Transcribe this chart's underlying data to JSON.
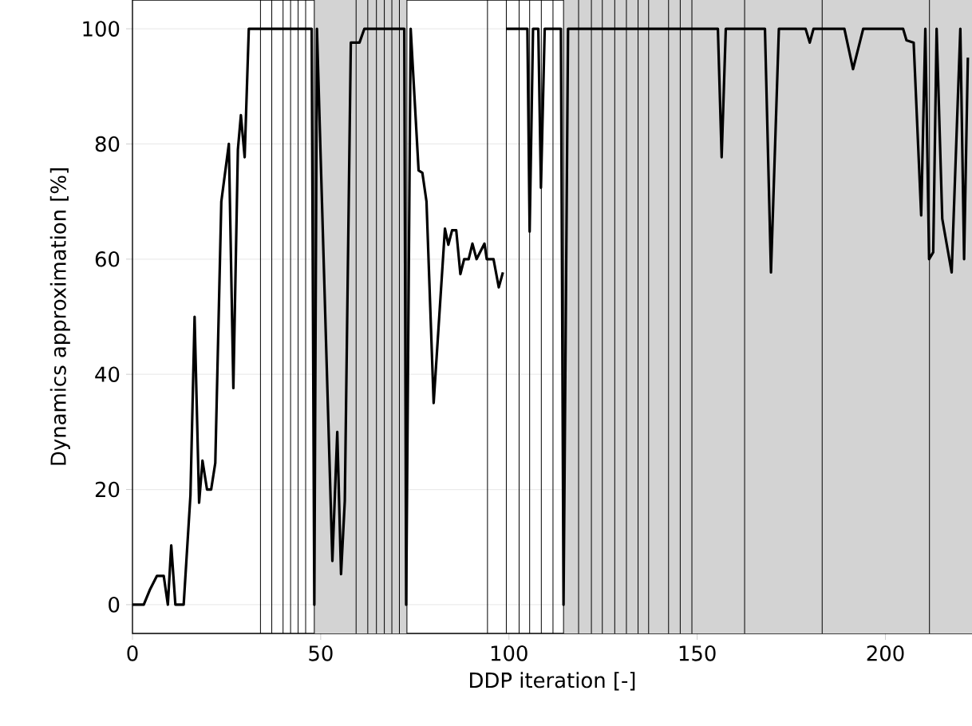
{
  "chart_data": {
    "type": "line",
    "xlabel": "DDP iteration [-]",
    "ylabel": "Dynamics approximation [%]",
    "xlim": [
      0,
      223
    ],
    "ylim": [
      -5,
      105
    ],
    "xticks": [
      0,
      50,
      100,
      150,
      200
    ],
    "yticks": [
      0,
      20,
      40,
      60,
      80,
      100
    ],
    "grid": "y",
    "line_style": "solid",
    "series": [
      {
        "color": "#000000",
        "x": [
          0,
          3,
          4.7,
          6.5,
          8.3,
          9.4,
          10.3,
          11.4,
          13.6,
          15.4,
          16.5,
          17.7,
          18.6,
          19.8,
          20.9,
          22,
          23.6,
          25.6,
          26.8,
          28,
          28.8,
          29.8,
          30.9,
          47.6,
          48.3,
          49,
          53.1,
          54.4,
          55.4,
          56.4,
          58,
          60.3,
          61.6,
          72.2,
          72.7,
          73.9,
          76,
          77,
          78.1,
          80,
          83,
          83.9,
          84.9,
          86,
          87.1,
          88.1,
          89.3,
          90.3,
          91.4,
          93.5,
          94.1,
          95.9,
          97.3,
          98.4,
          98.8,
          99.2,
          104.9,
          105.5,
          106.4,
          107.8,
          108.5,
          109.5,
          113.8,
          114.5,
          115.7,
          155.5,
          156.5,
          157.6,
          168,
          169.6,
          171.7,
          178.8,
          179.9,
          180.9,
          189.1,
          191.4,
          194.1,
          204.7,
          205.6,
          207.5,
          209.5,
          210.6,
          211.6,
          212.7,
          213.6,
          215.1,
          217.6,
          219.9,
          220.9,
          221.9
        ],
        "values": [
          0,
          0,
          2.7,
          5,
          5,
          0,
          10.3,
          0,
          0,
          19,
          50,
          17.7,
          25,
          20,
          20,
          24.6,
          70,
          80,
          37.6,
          79,
          85,
          77.7,
          100,
          100,
          0,
          100,
          7.6,
          30,
          5.3,
          18,
          97.6,
          97.6,
          100,
          100,
          0,
          100,
          75.4,
          75,
          70,
          35,
          65.3,
          62.5,
          65,
          65,
          57.4,
          60,
          60,
          62.7,
          60,
          62.7,
          60,
          60,
          55.1,
          57.7,
          null,
          100,
          100,
          64.8,
          100,
          100,
          72.4,
          100,
          100,
          0,
          100,
          100,
          77.7,
          100,
          100,
          57.7,
          100,
          100,
          97.6,
          100,
          100,
          93,
          100,
          100,
          98,
          97.6,
          67.6,
          100,
          60,
          61.2,
          100,
          67,
          57.7,
          100,
          60,
          95
        ]
      }
    ],
    "bands": [
      {
        "axis": "x",
        "from": 48.3,
        "to": 72.9,
        "color": "#d3d3d3"
      },
      {
        "axis": "x",
        "from": 114.5,
        "to": 223,
        "color": "#d3d3d3"
      }
    ],
    "ref_lines": [
      {
        "axis": "x",
        "value": 34,
        "color": "#000000"
      },
      {
        "axis": "x",
        "value": 37,
        "color": "#000000"
      },
      {
        "axis": "x",
        "value": 40,
        "color": "#000000"
      },
      {
        "axis": "x",
        "value": 42,
        "color": "#000000"
      },
      {
        "axis": "x",
        "value": 44,
        "color": "#000000"
      },
      {
        "axis": "x",
        "value": 46,
        "color": "#000000"
      },
      {
        "axis": "x",
        "value": 48.3,
        "color": "#000000"
      },
      {
        "axis": "x",
        "value": 59.4,
        "color": "#000000"
      },
      {
        "axis": "x",
        "value": 62.5,
        "color": "#000000"
      },
      {
        "axis": "x",
        "value": 64.8,
        "color": "#000000"
      },
      {
        "axis": "x",
        "value": 66.9,
        "color": "#000000"
      },
      {
        "axis": "x",
        "value": 68.9,
        "color": "#000000"
      },
      {
        "axis": "x",
        "value": 70.9,
        "color": "#000000"
      },
      {
        "axis": "x",
        "value": 72.9,
        "color": "#000000"
      },
      {
        "axis": "x",
        "value": 94.3,
        "color": "#000000"
      },
      {
        "axis": "x",
        "value": 99.3,
        "color": "#000000"
      },
      {
        "axis": "x",
        "value": 102.7,
        "color": "#000000"
      },
      {
        "axis": "x",
        "value": 105.5,
        "color": "#000000"
      },
      {
        "axis": "x",
        "value": 108.6,
        "color": "#000000"
      },
      {
        "axis": "x",
        "value": 111.7,
        "color": "#000000"
      },
      {
        "axis": "x",
        "value": 114.5,
        "color": "#000000"
      },
      {
        "axis": "x",
        "value": 118.5,
        "color": "#000000"
      },
      {
        "axis": "x",
        "value": 121.9,
        "color": "#000000"
      },
      {
        "axis": "x",
        "value": 124.8,
        "color": "#000000"
      },
      {
        "axis": "x",
        "value": 128.1,
        "color": "#000000"
      },
      {
        "axis": "x",
        "value": 131.2,
        "color": "#000000"
      },
      {
        "axis": "x",
        "value": 134.3,
        "color": "#000000"
      },
      {
        "axis": "x",
        "value": 137.1,
        "color": "#000000"
      },
      {
        "axis": "x",
        "value": 142.4,
        "color": "#000000"
      },
      {
        "axis": "x",
        "value": 145.5,
        "color": "#000000"
      },
      {
        "axis": "x",
        "value": 148.6,
        "color": "#000000"
      },
      {
        "axis": "x",
        "value": 162.6,
        "color": "#000000"
      },
      {
        "axis": "x",
        "value": 183.2,
        "color": "#000000"
      },
      {
        "axis": "x",
        "value": 211.7,
        "color": "#000000"
      }
    ]
  }
}
